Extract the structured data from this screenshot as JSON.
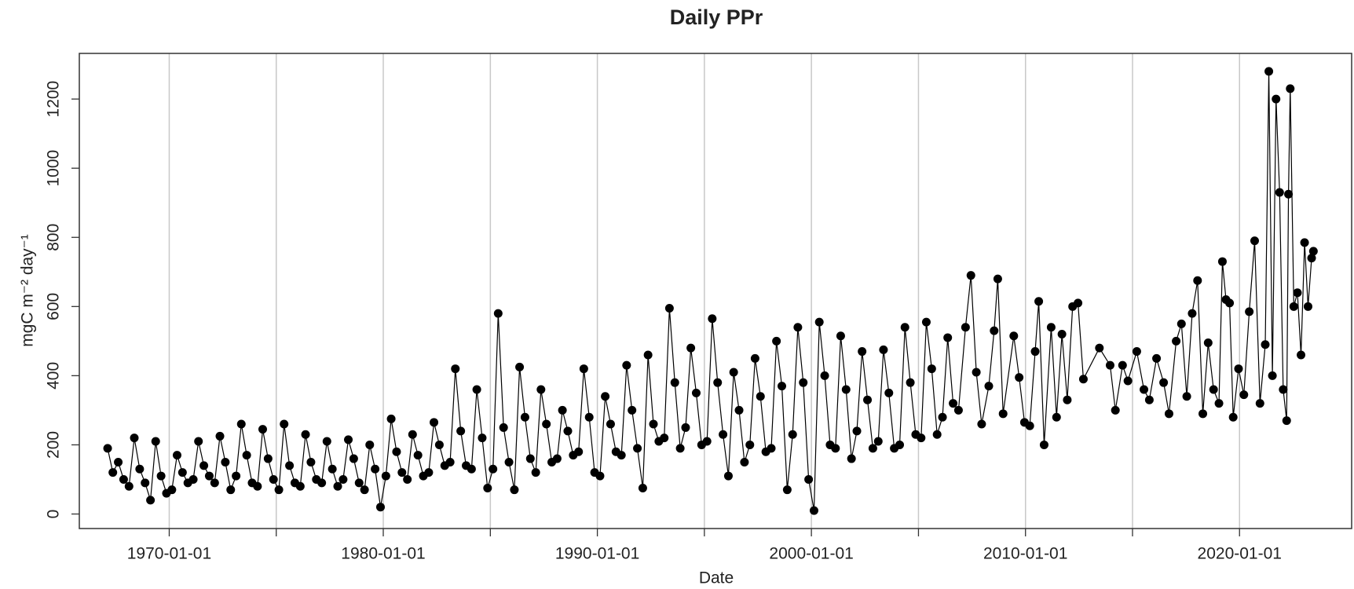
{
  "chart_data": {
    "type": "line",
    "title": "Daily PPr",
    "x_label": "Date",
    "y_label": "mgC m⁻² day⁻¹",
    "color": "#000000",
    "grid": true,
    "xlim": [
      "1965-10-20",
      "2025-03-28"
    ],
    "xticks": [
      "1970-01-01",
      "1980-01-01",
      "1990-01-01",
      "2000-01-01",
      "2010-01-01",
      "2020-01-01"
    ],
    "xminor_ticks": [
      "1975-01-01",
      "1985-01-01",
      "1995-01-01",
      "2005-01-01",
      "2015-01-01"
    ],
    "ylim": [
      -42,
      1332
    ],
    "yticks": [
      0,
      200,
      400,
      600,
      800,
      1000,
      1200
    ],
    "x": [
      "1967-02-15",
      "1967-05-15",
      "1967-08-15",
      "1967-11-15",
      "1968-02-15",
      "1968-05-15",
      "1968-08-15",
      "1968-11-15",
      "1969-02-15",
      "1969-05-15",
      "1969-08-15",
      "1969-11-15",
      "1970-02-15",
      "1970-05-15",
      "1970-08-15",
      "1970-11-15",
      "1971-02-15",
      "1971-05-15",
      "1971-08-15",
      "1971-11-15",
      "1972-02-15",
      "1972-05-15",
      "1972-08-15",
      "1972-11-15",
      "1973-02-15",
      "1973-05-15",
      "1973-08-15",
      "1973-11-15",
      "1974-02-15",
      "1974-05-15",
      "1974-08-15",
      "1974-11-15",
      "1975-02-15",
      "1975-05-15",
      "1975-08-15",
      "1975-11-15",
      "1976-02-15",
      "1976-05-15",
      "1976-08-15",
      "1976-11-15",
      "1977-02-15",
      "1977-05-15",
      "1977-08-15",
      "1977-11-15",
      "1978-02-15",
      "1978-05-15",
      "1978-08-15",
      "1978-11-15",
      "1979-02-15",
      "1979-05-15",
      "1979-08-15",
      "1979-11-15",
      "1980-02-15",
      "1980-05-15",
      "1980-08-15",
      "1980-11-15",
      "1981-02-15",
      "1981-05-15",
      "1981-08-15",
      "1981-11-15",
      "1982-02-15",
      "1982-05-15",
      "1982-08-15",
      "1982-11-15",
      "1983-02-15",
      "1983-05-15",
      "1983-08-15",
      "1983-11-15",
      "1984-02-15",
      "1984-05-15",
      "1984-08-15",
      "1984-11-15",
      "1985-02-15",
      "1985-05-15",
      "1985-08-15",
      "1985-11-15",
      "1986-02-15",
      "1986-05-15",
      "1986-08-15",
      "1986-11-15",
      "1987-02-15",
      "1987-05-15",
      "1987-08-15",
      "1987-11-15",
      "1988-02-15",
      "1988-05-15",
      "1988-08-15",
      "1988-11-15",
      "1989-02-15",
      "1989-05-15",
      "1989-08-15",
      "1989-11-15",
      "1990-02-15",
      "1990-05-15",
      "1990-08-15",
      "1990-11-15",
      "1991-02-15",
      "1991-05-15",
      "1991-08-15",
      "1991-11-15",
      "1992-02-15",
      "1992-05-15",
      "1992-08-15",
      "1992-11-15",
      "1993-02-15",
      "1993-05-15",
      "1993-08-15",
      "1993-11-15",
      "1994-02-15",
      "1994-05-15",
      "1994-08-15",
      "1994-11-15",
      "1995-02-15",
      "1995-05-15",
      "1995-08-15",
      "1995-11-15",
      "1996-02-15",
      "1996-05-15",
      "1996-08-15",
      "1996-11-15",
      "1997-02-15",
      "1997-05-15",
      "1997-08-15",
      "1997-11-15",
      "1998-02-15",
      "1998-05-15",
      "1998-08-15",
      "1998-11-15",
      "1999-02-15",
      "1999-05-15",
      "1999-08-15",
      "1999-11-15",
      "2000-02-15",
      "2000-05-15",
      "2000-08-15",
      "2000-11-15",
      "2001-02-15",
      "2001-05-15",
      "2001-08-15",
      "2001-11-15",
      "2002-02-15",
      "2002-05-15",
      "2002-08-15",
      "2002-11-15",
      "2003-02-15",
      "2003-05-15",
      "2003-08-15",
      "2003-11-15",
      "2004-02-15",
      "2004-05-15",
      "2004-08-15",
      "2004-11-15",
      "2005-02-15",
      "2005-05-15",
      "2005-08-15",
      "2005-11-15",
      "2006-02-15",
      "2006-05-15",
      "2006-08-15",
      "2006-11-15",
      "2007-03-15",
      "2007-06-15",
      "2007-09-15",
      "2007-12-15",
      "2008-04-15",
      "2008-07-15",
      "2008-09-15",
      "2008-12-15",
      "2009-06-15",
      "2009-09-15",
      "2009-12-15",
      "2010-03-15",
      "2010-06-15",
      "2010-08-15",
      "2010-11-15",
      "2011-03-15",
      "2011-06-15",
      "2011-09-15",
      "2011-12-15",
      "2012-03-15",
      "2012-06-15",
      "2012-09-15",
      "2013-06-15",
      "2013-12-15",
      "2014-03-15",
      "2014-07-15",
      "2014-10-15",
      "2015-03-15",
      "2015-07-15",
      "2015-10-15",
      "2016-02-15",
      "2016-06-15",
      "2016-09-15",
      "2017-01-15",
      "2017-04-15",
      "2017-07-15",
      "2017-10-15",
      "2018-01-15",
      "2018-04-15",
      "2018-07-15",
      "2018-10-15",
      "2019-01-15",
      "2019-03-15",
      "2019-05-15",
      "2019-07-15",
      "2019-09-15",
      "2019-12-15",
      "2020-03-15",
      "2020-06-15",
      "2020-09-15",
      "2020-12-15",
      "2021-03-15",
      "2021-05-15",
      "2021-07-15",
      "2021-09-15",
      "2021-11-15",
      "2022-01-15",
      "2022-03-15",
      "2022-04-15",
      "2022-05-15",
      "2022-07-15",
      "2022-09-15",
      "2022-11-15",
      "2023-01-15",
      "2023-03-15",
      "2023-05-15",
      "2023-06-15"
    ],
    "values": [
      190,
      120,
      150,
      100,
      80,
      220,
      130,
      90,
      40,
      210,
      110,
      60,
      70,
      170,
      120,
      90,
      100,
      210,
      140,
      110,
      90,
      225,
      150,
      70,
      110,
      260,
      170,
      90,
      80,
      245,
      160,
      100,
      70,
      260,
      140,
      90,
      80,
      230,
      150,
      100,
      90,
      210,
      130,
      80,
      100,
      215,
      160,
      90,
      70,
      200,
      130,
      20,
      110,
      275,
      180,
      120,
      100,
      230,
      170,
      110,
      120,
      265,
      200,
      140,
      150,
      420,
      240,
      140,
      130,
      360,
      220,
      75,
      130,
      580,
      250,
      150,
      70,
      425,
      280,
      160,
      120,
      360,
      260,
      150,
      160,
      300,
      240,
      170,
      180,
      420,
      280,
      120,
      110,
      340,
      260,
      180,
      170,
      430,
      300,
      190,
      75,
      460,
      260,
      210,
      220,
      595,
      380,
      190,
      250,
      480,
      350,
      200,
      210,
      565,
      380,
      230,
      110,
      410,
      300,
      150,
      200,
      450,
      340,
      180,
      190,
      500,
      370,
      70,
      230,
      540,
      380,
      100,
      10,
      555,
      400,
      200,
      190,
      515,
      360,
      160,
      240,
      470,
      330,
      190,
      210,
      475,
      350,
      190,
      200,
      540,
      380,
      230,
      220,
      555,
      420,
      230,
      280,
      510,
      320,
      300,
      540,
      690,
      410,
      260,
      370,
      530,
      680,
      290,
      515,
      395,
      265,
      255,
      470,
      615,
      200,
      540,
      280,
      520,
      330,
      600,
      610,
      390,
      480,
      430,
      300,
      430,
      385,
      470,
      360,
      330,
      450,
      380,
      290,
      500,
      550,
      340,
      580,
      675,
      290,
      495,
      360,
      320,
      730,
      620,
      610,
      280,
      420,
      345,
      585,
      790,
      320,
      490,
      1280,
      400,
      1200,
      930,
      360,
      270,
      925,
      1230,
      600,
      640,
      460,
      785,
      600,
      740,
      760
    ]
  }
}
